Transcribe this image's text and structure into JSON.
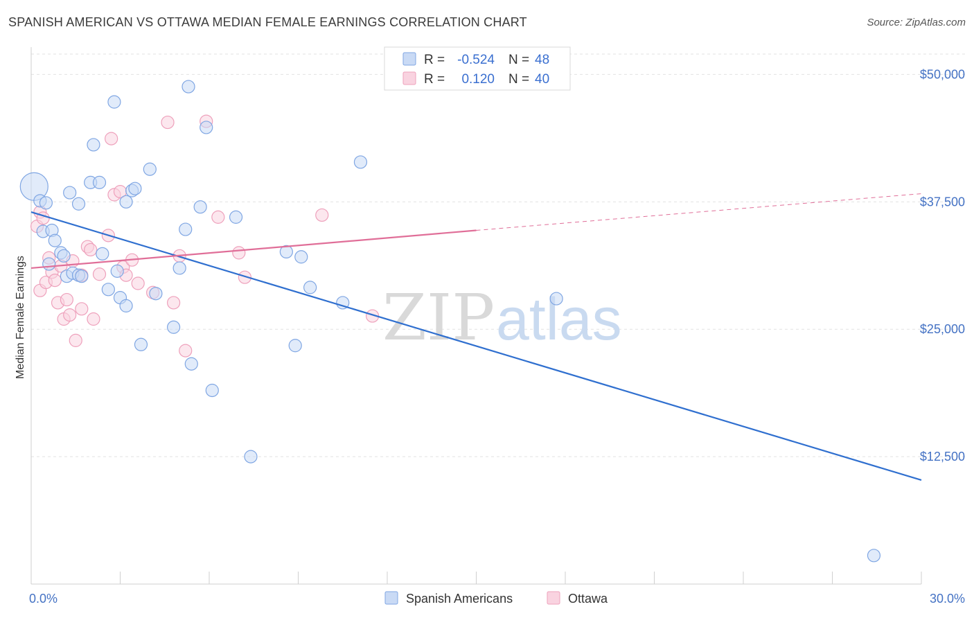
{
  "header": {
    "title": "SPANISH AMERICAN VS OTTAWA MEDIAN FEMALE EARNINGS CORRELATION CHART",
    "source": "Source: ZipAtlas.com"
  },
  "watermark": {
    "zip": "ZIP",
    "atlas": "atlas"
  },
  "chart_data": {
    "type": "scatter",
    "xlabel": "",
    "ylabel": "Median Female Earnings",
    "xlim": [
      0,
      30
    ],
    "ylim": [
      0,
      52000
    ],
    "x_tick_labels": [
      "0.0%",
      "30.0%"
    ],
    "y_ticks": [
      12500,
      25000,
      37500,
      50000
    ],
    "y_tick_labels": [
      "$12,500",
      "$25,000",
      "$37,500",
      "$50,000"
    ],
    "grid": true,
    "legend_placement": "top-center",
    "stats": [
      {
        "r_label": "R =",
        "r_value": "-0.524",
        "n_label": "N =",
        "n_value": "48"
      },
      {
        "r_label": "R =",
        "r_value": "0.120",
        "n_label": "N =",
        "n_value": "40"
      }
    ],
    "series": [
      {
        "name": "Spanish Americans",
        "color": "#7fa6e3",
        "fill": "#c9daf5",
        "line_color": "#2f6fcf",
        "trend": {
          "x": [
            0,
            30
          ],
          "y": [
            36500,
            10200
          ]
        },
        "points": [
          {
            "x": 0.1,
            "y": 39000,
            "big": true
          },
          {
            "x": 0.3,
            "y": 37600
          },
          {
            "x": 0.5,
            "y": 37400
          },
          {
            "x": 0.4,
            "y": 34600
          },
          {
            "x": 0.7,
            "y": 34700
          },
          {
            "x": 0.8,
            "y": 33700
          },
          {
            "x": 1.0,
            "y": 32500
          },
          {
            "x": 1.1,
            "y": 32200
          },
          {
            "x": 0.6,
            "y": 31400
          },
          {
            "x": 1.2,
            "y": 30200
          },
          {
            "x": 1.4,
            "y": 30500
          },
          {
            "x": 1.6,
            "y": 30300
          },
          {
            "x": 1.7,
            "y": 30200
          },
          {
            "x": 1.3,
            "y": 38400
          },
          {
            "x": 1.6,
            "y": 37300
          },
          {
            "x": 2.0,
            "y": 39400
          },
          {
            "x": 2.3,
            "y": 39400
          },
          {
            "x": 2.1,
            "y": 43100
          },
          {
            "x": 2.8,
            "y": 47300
          },
          {
            "x": 2.4,
            "y": 32400
          },
          {
            "x": 2.6,
            "y": 28900
          },
          {
            "x": 2.9,
            "y": 30700
          },
          {
            "x": 3.0,
            "y": 28100
          },
          {
            "x": 3.2,
            "y": 27300
          },
          {
            "x": 3.2,
            "y": 37500
          },
          {
            "x": 3.4,
            "y": 38600
          },
          {
            "x": 3.5,
            "y": 38800
          },
          {
            "x": 4.0,
            "y": 40700
          },
          {
            "x": 3.7,
            "y": 23500
          },
          {
            "x": 4.2,
            "y": 28500
          },
          {
            "x": 4.8,
            "y": 25200
          },
          {
            "x": 5.0,
            "y": 31000
          },
          {
            "x": 5.2,
            "y": 34800
          },
          {
            "x": 5.4,
            "y": 21600
          },
          {
            "x": 5.7,
            "y": 37000
          },
          {
            "x": 5.3,
            "y": 48800
          },
          {
            "x": 5.9,
            "y": 44800
          },
          {
            "x": 6.1,
            "y": 19000
          },
          {
            "x": 6.9,
            "y": 36000
          },
          {
            "x": 7.4,
            "y": 12500
          },
          {
            "x": 8.6,
            "y": 32600
          },
          {
            "x": 8.9,
            "y": 23400
          },
          {
            "x": 9.1,
            "y": 32100
          },
          {
            "x": 9.4,
            "y": 29100
          },
          {
            "x": 10.5,
            "y": 27600
          },
          {
            "x": 11.1,
            "y": 41400
          },
          {
            "x": 17.7,
            "y": 28000
          },
          {
            "x": 28.4,
            "y": 2800
          }
        ]
      },
      {
        "name": "Ottawa",
        "color": "#eea0bb",
        "fill": "#f9d3e0",
        "line_color": "#e06e98",
        "trend": {
          "x": [
            0,
            15
          ],
          "y": [
            31000,
            34700
          ]
        },
        "trend_dashed": {
          "x": [
            15,
            30
          ],
          "y": [
            34700,
            38300
          ]
        },
        "points": [
          {
            "x": 0.2,
            "y": 35100
          },
          {
            "x": 0.3,
            "y": 36500
          },
          {
            "x": 0.4,
            "y": 35900
          },
          {
            "x": 0.3,
            "y": 28800
          },
          {
            "x": 0.5,
            "y": 29600
          },
          {
            "x": 0.6,
            "y": 32000
          },
          {
            "x": 0.7,
            "y": 30600
          },
          {
            "x": 0.8,
            "y": 29800
          },
          {
            "x": 0.9,
            "y": 27600
          },
          {
            "x": 1.0,
            "y": 31200
          },
          {
            "x": 1.1,
            "y": 26000
          },
          {
            "x": 1.2,
            "y": 27900
          },
          {
            "x": 1.3,
            "y": 26400
          },
          {
            "x": 1.4,
            "y": 31700
          },
          {
            "x": 1.5,
            "y": 23900
          },
          {
            "x": 1.7,
            "y": 27000
          },
          {
            "x": 1.7,
            "y": 30300
          },
          {
            "x": 1.9,
            "y": 33100
          },
          {
            "x": 2.0,
            "y": 32800
          },
          {
            "x": 2.1,
            "y": 26000
          },
          {
            "x": 2.3,
            "y": 30400
          },
          {
            "x": 2.6,
            "y": 34200
          },
          {
            "x": 2.7,
            "y": 43700
          },
          {
            "x": 2.8,
            "y": 38200
          },
          {
            "x": 3.0,
            "y": 38500
          },
          {
            "x": 3.1,
            "y": 31100
          },
          {
            "x": 3.2,
            "y": 30300
          },
          {
            "x": 3.4,
            "y": 31800
          },
          {
            "x": 3.6,
            "y": 29500
          },
          {
            "x": 4.1,
            "y": 28600
          },
          {
            "x": 4.6,
            "y": 45300
          },
          {
            "x": 4.8,
            "y": 27600
          },
          {
            "x": 5.0,
            "y": 32200
          },
          {
            "x": 5.2,
            "y": 22900
          },
          {
            "x": 5.9,
            "y": 45400
          },
          {
            "x": 6.3,
            "y": 36000
          },
          {
            "x": 7.0,
            "y": 32500
          },
          {
            "x": 7.2,
            "y": 30100
          },
          {
            "x": 9.8,
            "y": 36200
          },
          {
            "x": 11.5,
            "y": 26300
          }
        ]
      }
    ]
  }
}
